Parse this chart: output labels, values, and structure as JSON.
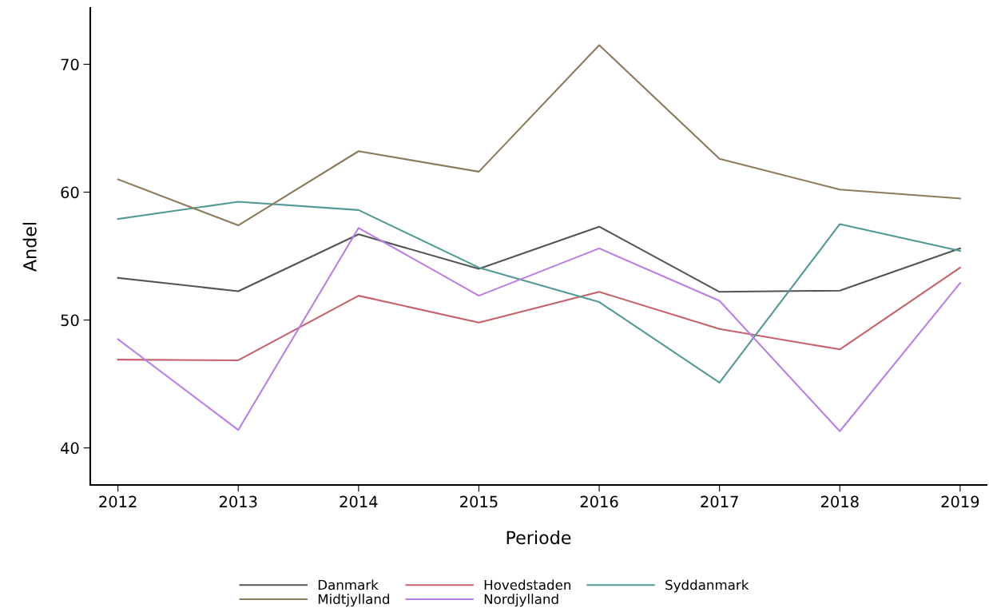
{
  "chart_data": {
    "type": "line",
    "xlabel": "Periode",
    "ylabel": "Andel",
    "x": [
      2012,
      2013,
      2014,
      2015,
      2016,
      2017,
      2018,
      2019
    ],
    "series": [
      {
        "name": "Danmark",
        "color": "#545454",
        "values": [
          53.3,
          52.25,
          56.7,
          54.0,
          57.3,
          52.2,
          52.3,
          55.6
        ]
      },
      {
        "name": "Hovedstaden",
        "color": "#c8606a",
        "values": [
          46.9,
          46.85,
          51.9,
          49.8,
          52.2,
          49.3,
          47.7,
          54.1
        ]
      },
      {
        "name": "Syddanmark",
        "color": "#4f9a94",
        "values": [
          57.9,
          59.25,
          58.6,
          54.1,
          51.4,
          45.1,
          57.5,
          55.4
        ]
      },
      {
        "name": "Midtjylland",
        "color": "#8c7a5c",
        "values": [
          61.0,
          57.4,
          63.2,
          61.6,
          71.5,
          62.6,
          60.2,
          59.5
        ]
      },
      {
        "name": "Nordjylland",
        "color": "#b97ee6",
        "values": [
          48.5,
          41.4,
          57.2,
          51.9,
          55.6,
          51.5,
          41.3,
          52.9
        ]
      }
    ],
    "xlim": [
      2011.77,
      2019.22
    ],
    "ylim": [
      37.1,
      74.4
    ],
    "xticks": [
      2012,
      2013,
      2014,
      2015,
      2016,
      2017,
      2018,
      2019
    ],
    "yticks": [
      40,
      50,
      60,
      70
    ],
    "grid": false,
    "legend": "bottom",
    "marker": "none",
    "line_style": "solid"
  }
}
